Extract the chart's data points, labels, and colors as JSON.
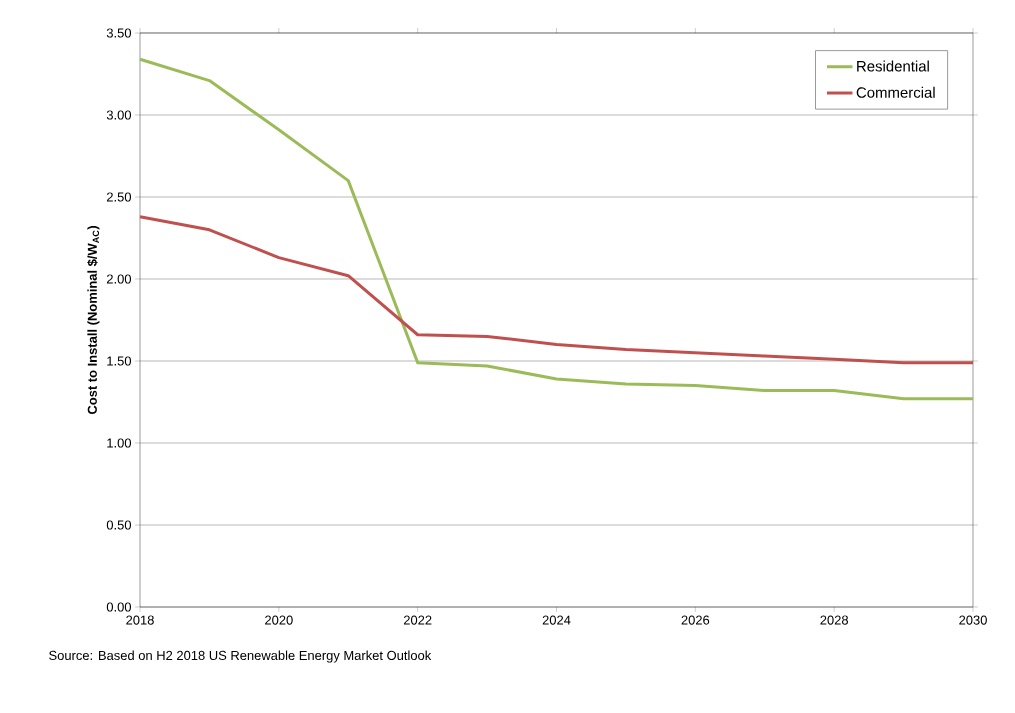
{
  "chart_data": {
    "type": "line",
    "ylabel": "Cost to Install (Nominal $/W$_{AC}$)",
    "x": [
      2018,
      2019,
      2020,
      2021,
      2022,
      2023,
      2024,
      2025,
      2026,
      2027,
      2028,
      2029,
      2030
    ],
    "series": [
      {
        "name": "Residential",
        "color": "#9bbb59",
        "values": [
          3.34,
          3.21,
          2.91,
          2.6,
          1.49,
          1.47,
          1.39,
          1.36,
          1.35,
          1.32,
          1.32,
          1.27,
          1.27
        ]
      },
      {
        "name": "Commercial",
        "color": "#c0504d",
        "values": [
          2.38,
          2.3,
          2.13,
          2.02,
          1.66,
          1.65,
          1.6,
          1.57,
          1.55,
          1.53,
          1.51,
          1.49,
          1.49
        ]
      }
    ],
    "xlim": [
      2018,
      2030
    ],
    "xticks": [
      2018,
      2020,
      2022,
      2024,
      2026,
      2028,
      2030
    ],
    "ylim": [
      0,
      3.5
    ],
    "yticks": [
      {
        "value": 0,
        "label": "0.00"
      },
      {
        "value": 0.5,
        "label": "0.50"
      },
      {
        "value": 1,
        "label": "1.00"
      },
      {
        "value": 1.5,
        "label": "1.50"
      },
      {
        "value": 2,
        "label": "2.00"
      },
      {
        "value": 2.5,
        "label": "2.50"
      },
      {
        "value": 3,
        "label": "3.00"
      },
      {
        "value": 3.5,
        "label": "3.50"
      }
    ],
    "grid": "y",
    "legend": "top right",
    "marker": "none",
    "line_style": "solid",
    "annotations": [
      "Source: Based on H2 2018 US Renewable Energy Market Outlook"
    ]
  }
}
